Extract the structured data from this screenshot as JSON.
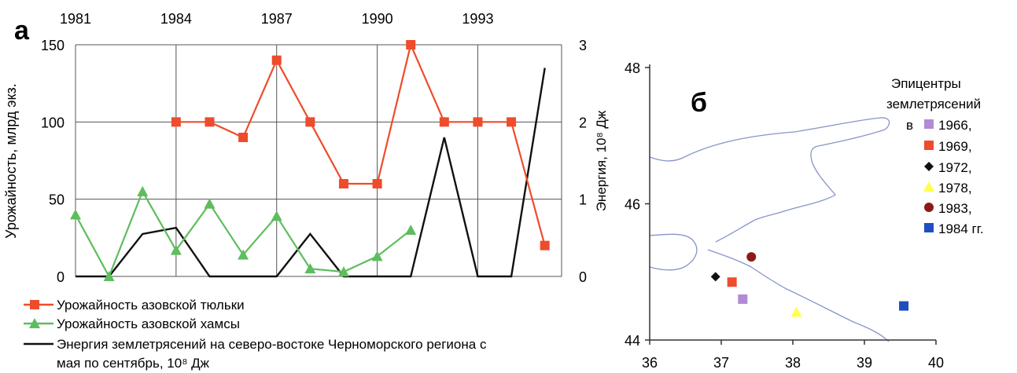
{
  "chart_data": [
    {
      "panel_label": "а",
      "type": "line",
      "top_axis": {
        "ticks": [
          "1981",
          "1984",
          "1987",
          "1990",
          "1993"
        ]
      },
      "left_axis": {
        "label": "Урожайность, млрд экз.",
        "ylim": [
          0,
          150
        ],
        "ticks": [
          "0",
          "50",
          "100",
          "150"
        ]
      },
      "right_axis": {
        "label": "Энергия, 10⁸ Дж",
        "ylim": [
          0,
          3
        ],
        "ticks": [
          "0",
          "1",
          "2",
          "3"
        ]
      },
      "xlim": [
        1981,
        1995.5
      ],
      "grid": true,
      "legend_position": "bottom-left",
      "series": [
        {
          "name": "Урожайность азовской тюльки",
          "axis": "left",
          "color": "#ee4c2c",
          "marker": "square",
          "x": [
            1984,
            1985,
            1986,
            1987,
            1988,
            1989,
            1990,
            1991,
            1992,
            1993,
            1994,
            1995
          ],
          "values": [
            100,
            100,
            90,
            140,
            100,
            60,
            60,
            150,
            100,
            100,
            100,
            20
          ]
        },
        {
          "name": "Урожайность азовской хамсы",
          "axis": "left",
          "color": "#5ebd5e",
          "marker": "triangle",
          "x": [
            1981,
            1982,
            1983,
            1984,
            1985,
            1986,
            1987,
            1988,
            1989,
            1990,
            1991
          ],
          "values": [
            40,
            0,
            55,
            17,
            47,
            14,
            39,
            5,
            3,
            13,
            30
          ]
        },
        {
          "name": "Энергия землетрясений на северо-востоке Черноморского региона с мая по сентябрь, 10⁸ Дж",
          "axis": "right",
          "color": "#111111",
          "marker": "none",
          "x": [
            1981,
            1982,
            1983,
            1984,
            1985,
            1986,
            1987,
            1988,
            1989,
            1990,
            1991,
            1992,
            1993,
            1994,
            1995
          ],
          "values": [
            0,
            0,
            0.55,
            0.63,
            0,
            0,
            0,
            0.55,
            0,
            0,
            0,
            1.8,
            0,
            0,
            2.7
          ]
        }
      ]
    },
    {
      "panel_label": "б",
      "type": "scatter",
      "xlim": [
        36,
        40
      ],
      "ylim": [
        44,
        48
      ],
      "x_ticks": [
        "36",
        "37",
        "38",
        "39",
        "40"
      ],
      "y_ticks": [
        "44",
        "46",
        "48"
      ],
      "legend_title_line1": "Эпицентры",
      "legend_title_line2": "землетрясений",
      "legend_prefix": "в",
      "series": [
        {
          "name": "1966,",
          "color": "#b28ad6",
          "marker": "square",
          "x": [
            37.3
          ],
          "values": [
            44.6
          ]
        },
        {
          "name": "1969,",
          "color": "#ee4c2c",
          "marker": "square",
          "x": [
            37.15
          ],
          "values": [
            44.85
          ]
        },
        {
          "name": "1972,",
          "color": "#111111",
          "marker": "diamond",
          "x": [
            36.92
          ],
          "values": [
            44.93
          ]
        },
        {
          "name": "1978,",
          "color": "#ffff4d",
          "marker": "triangle",
          "x": [
            38.05
          ],
          "values": [
            44.41
          ]
        },
        {
          "name": "1983,",
          "color": "#8b1a1a",
          "marker": "circle",
          "x": [
            37.42
          ],
          "values": [
            45.22
          ]
        },
        {
          "name": "1984 гг.",
          "color": "#1f4fbf",
          "marker": "square",
          "x": [
            39.55
          ],
          "values": [
            44.5
          ]
        }
      ]
    }
  ]
}
